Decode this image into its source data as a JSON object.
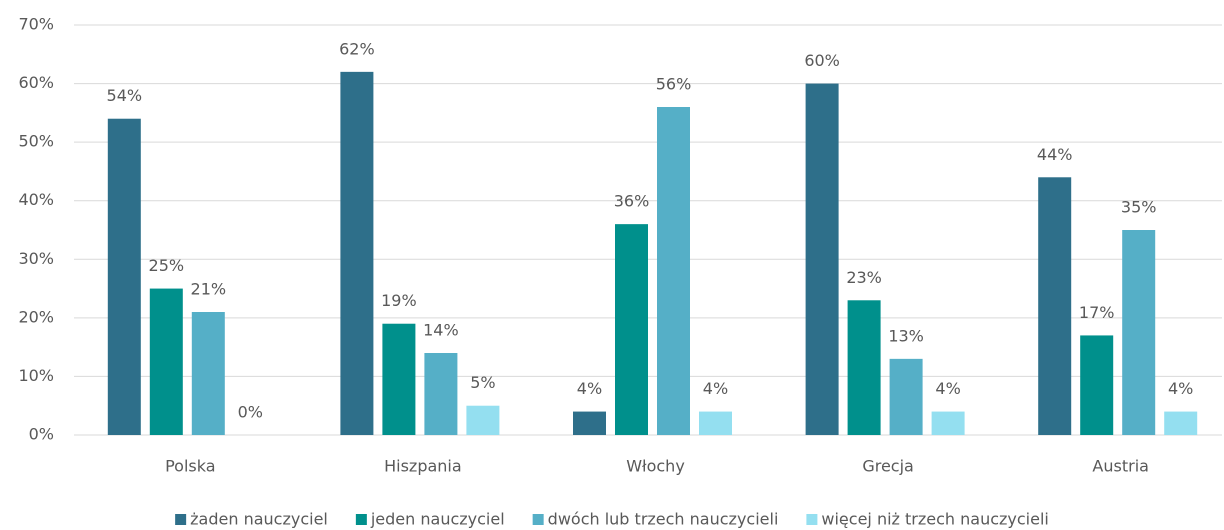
{
  "chart_data": {
    "type": "bar",
    "categories": [
      "Polska",
      "Hiszpania",
      "Włochy",
      "Grecja",
      "Austria"
    ],
    "series": [
      {
        "name": "żaden nauczyciel",
        "color": "#2e6f8a",
        "values": [
          54,
          62,
          4,
          60,
          44
        ],
        "value_labels": [
          "54%",
          "62%",
          "4%",
          "60%",
          "44%"
        ]
      },
      {
        "name": "jeden nauczyciel",
        "color": "#00908c",
        "values": [
          25,
          19,
          36,
          23,
          17
        ],
        "value_labels": [
          "25%",
          "19%",
          "36%",
          "23%",
          "17%"
        ]
      },
      {
        "name": "dwóch lub trzech nauczycieli",
        "color": "#55afc7",
        "values": [
          21,
          14,
          56,
          13,
          35
        ],
        "value_labels": [
          "21%",
          "14%",
          "56%",
          "13%",
          "35%"
        ]
      },
      {
        "name": "więcej niż trzech nauczycieli",
        "color": "#94dff0",
        "values": [
          0,
          5,
          4,
          4,
          4
        ],
        "value_labels": [
          "0%",
          "5%",
          "4%",
          "4%",
          "4%"
        ]
      }
    ],
    "ylim": [
      0,
      70
    ],
    "yticks": [
      {
        "value": 0,
        "label": "0%"
      },
      {
        "value": 10,
        "label": "10%"
      },
      {
        "value": 20,
        "label": "20%"
      },
      {
        "value": 30,
        "label": "30%"
      },
      {
        "value": 40,
        "label": "40%"
      },
      {
        "value": 50,
        "label": "50%"
      },
      {
        "value": 60,
        "label": "60%"
      },
      {
        "value": 70,
        "label": "70%"
      }
    ],
    "grid": true,
    "legend": "bottom"
  }
}
